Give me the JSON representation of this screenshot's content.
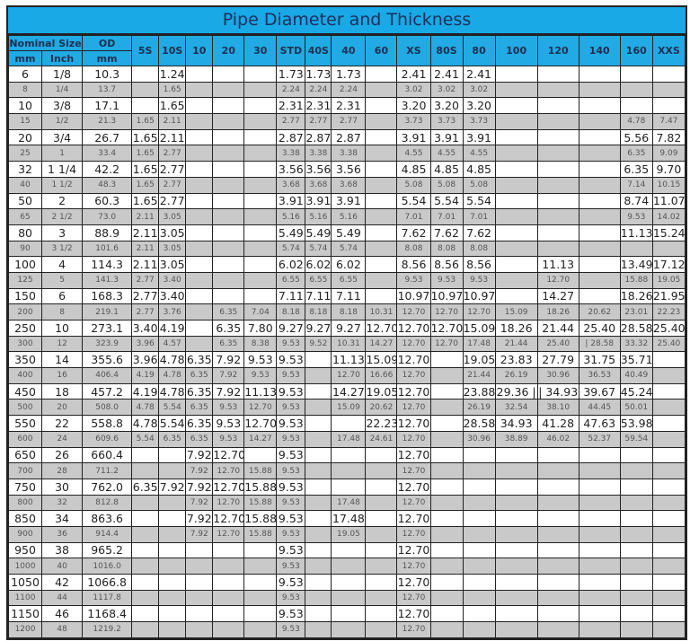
{
  "title": "Pipe Diameter and Thickness",
  "header": {
    "nominal_size": "Nominal Size",
    "od": "OD",
    "sub": [
      "mm",
      "Inch",
      "mm"
    ],
    "schedules": [
      "5S",
      "10S",
      "10",
      "20",
      "30",
      "STD",
      "40S",
      "40",
      "60",
      "XS",
      "80S",
      "80",
      "100",
      "120",
      "140",
      "160",
      "XXS"
    ]
  },
  "colors": {
    "title_bg": "#18a9e6",
    "header_bg": "#21aae4",
    "alt_row": "#c9c9c9"
  },
  "rows": [
    [
      "6",
      "1/8",
      "10.3",
      "",
      "1.24",
      "",
      "",
      "",
      "1.73",
      "1.73",
      "1.73",
      "",
      "2.41",
      "2.41",
      "2.41",
      "",
      "",
      "",
      "",
      ""
    ],
    [
      "8",
      "1/4",
      "13.7",
      "",
      "1.65",
      "",
      "",
      "",
      "2.24",
      "2.24",
      "2.24",
      "",
      "3.02",
      "3.02",
      "3.02",
      "",
      "",
      "",
      "",
      ""
    ],
    [
      "10",
      "3/8",
      "17.1",
      "",
      "1.65",
      "",
      "",
      "",
      "2.31",
      "2.31",
      "2.31",
      "",
      "3.20",
      "3.20",
      "3.20",
      "",
      "",
      "",
      "",
      ""
    ],
    [
      "15",
      "1/2",
      "21.3",
      "1.65",
      "2.11",
      "",
      "",
      "",
      "2.77",
      "2.77",
      "2.77",
      "",
      "3.73",
      "3.73",
      "3.73",
      "",
      "",
      "",
      "4.78",
      "7.47"
    ],
    [
      "20",
      "3/4",
      "26.7",
      "1.65",
      "2.11",
      "",
      "",
      "",
      "2.87",
      "2.87",
      "2.87",
      "",
      "3.91",
      "3.91",
      "3.91",
      "",
      "",
      "",
      "5.56",
      "7.82"
    ],
    [
      "25",
      "1",
      "33.4",
      "1.65",
      "2.77",
      "",
      "",
      "",
      "3.38",
      "3.38",
      "3.38",
      "",
      "4.55",
      "4.55",
      "4.55",
      "",
      "",
      "",
      "6.35",
      "9.09"
    ],
    [
      "32",
      "1 1/4",
      "42.2",
      "1.65",
      "2.77",
      "",
      "",
      "",
      "3.56",
      "3.56",
      "3.56",
      "",
      "4.85",
      "4.85",
      "4.85",
      "",
      "",
      "",
      "6.35",
      "9.70"
    ],
    [
      "40",
      "1 1/2",
      "48.3",
      "1.65",
      "2.77",
      "",
      "",
      "",
      "3.68",
      "3.68",
      "3.68",
      "",
      "5.08",
      "5.08",
      "5.08",
      "",
      "",
      "",
      "7.14",
      "10.15"
    ],
    [
      "50",
      "2",
      "60.3",
      "1.65",
      "2.77",
      "",
      "",
      "",
      "3.91",
      "3.91",
      "3.91",
      "",
      "5.54",
      "5.54",
      "5.54",
      "",
      "",
      "",
      "8.74",
      "11.07"
    ],
    [
      "65",
      "2 1/2",
      "73.0",
      "2.11",
      "3.05",
      "",
      "",
      "",
      "5.16",
      "5.16",
      "5.16",
      "",
      "7.01",
      "7.01",
      "7.01",
      "",
      "",
      "",
      "9.53",
      "14.02"
    ],
    [
      "80",
      "3",
      "88.9",
      "2.11",
      "3.05",
      "",
      "",
      "",
      "5.49",
      "5.49",
      "5.49",
      "",
      "7.62",
      "7.62",
      "7.62",
      "",
      "",
      "",
      "11.13",
      "15.24"
    ],
    [
      "90",
      "3 1/2",
      "101.6",
      "2.11",
      "3.05",
      "",
      "",
      "",
      "5.74",
      "5.74",
      "5.74",
      "",
      "8.08",
      "8.08",
      "8.08",
      "",
      "",
      "",
      "",
      ""
    ],
    [
      "100",
      "4",
      "114.3",
      "2.11",
      "3.05",
      "",
      "",
      "",
      "6.02",
      "6.02",
      "6.02",
      "",
      "8.56",
      "8.56",
      "8.56",
      "",
      "11.13",
      "",
      "13.49",
      "17.12"
    ],
    [
      "125",
      "5",
      "141.3",
      "2.77",
      "3.40",
      "",
      "",
      "",
      "6.55",
      "6.55",
      "6.55",
      "",
      "9.53",
      "9.53",
      "9.53",
      "",
      "12.70",
      "",
      "15.88",
      "19.05"
    ],
    [
      "150",
      "6",
      "168.3",
      "2.77",
      "3.40",
      "",
      "",
      "",
      "7.11",
      "7.11",
      "7.11",
      "",
      "10.97",
      "10.97",
      "10.97",
      "",
      "14.27",
      "",
      "18.26",
      "21.95"
    ],
    [
      "200",
      "8",
      "219.1",
      "2.77",
      "3.76",
      "",
      "6.35",
      "7.04",
      "8.18",
      "8.18",
      "8.18",
      "10.31",
      "12.70",
      "12.70",
      "12.70",
      "15.09",
      "18.26",
      "20.62",
      "23.01",
      "22.23"
    ],
    [
      "250",
      "10",
      "273.1",
      "3.40",
      "4.19",
      "",
      "6.35",
      "7.80",
      "9.27",
      "9.27",
      "9.27",
      "12.70",
      "12.70",
      "12.70",
      "15.09",
      "18.26",
      "21.44",
      "25.40",
      "28.58",
      "25.40"
    ],
    [
      "300",
      "12",
      "323.9",
      "3.96",
      "4.57",
      "",
      "6.35",
      "8.38",
      "9.53",
      "9.52",
      "10.31",
      "14.27",
      "12.70",
      "12.70",
      "17.48",
      "21.44",
      "25.40",
      "| 28.58",
      "33.32",
      "25.40"
    ],
    [
      "350",
      "14",
      "355.6",
      "3.96",
      "4.78",
      "6.35",
      "7.92",
      "9.53",
      "9.53",
      "",
      "11.13",
      "15.09",
      "12.70",
      "",
      "19.05",
      "23.83",
      "27.79",
      "31.75",
      "35.71",
      ""
    ],
    [
      "400",
      "16",
      "406.4",
      "4.19",
      "4.78",
      "6.35",
      "7.92",
      "9.53",
      "9.53",
      "",
      "12.70",
      "16.66",
      "12.70",
      "",
      "21.44",
      "26.19",
      "30.96",
      "36.53",
      "40.49",
      ""
    ],
    [
      "450",
      "18",
      "457.2",
      "4.19",
      "4.78",
      "6.35",
      "7.92",
      "11.13",
      "9.53",
      "",
      "14.27",
      "19.05",
      "12.70",
      "",
      "23.88",
      "29.36 |",
      "| 34.93",
      "39.67",
      "45.24",
      ""
    ],
    [
      "500",
      "20",
      "508.0",
      "4.78",
      "5.54",
      "6.35",
      "9.53",
      "12.70",
      "9.53",
      "",
      "15.09",
      "20.62",
      "12.70",
      "",
      "26.19",
      "32.54",
      "38.10",
      "44.45",
      "50.01",
      ""
    ],
    [
      "550",
      "22",
      "558.8",
      "4.78",
      "5.54",
      "6.35",
      "9.53",
      "12.70",
      "9.53",
      "",
      "",
      "22.23",
      "12.70",
      "",
      "28.58",
      "34.93",
      "41.28",
      "47.63",
      "53.98",
      ""
    ],
    [
      "600",
      "24",
      "609.6",
      "5.54",
      "6.35",
      "6.35",
      "9.53",
      "14.27",
      "9.53",
      "",
      "17.48",
      "24.61",
      "12.70",
      "",
      "30.96",
      "38.89",
      "46.02",
      "52.37",
      "59.54",
      ""
    ],
    [
      "650",
      "26",
      "660.4",
      "",
      "",
      "7.92",
      "12.70",
      "",
      "9.53",
      "",
      "",
      "",
      "12.70",
      "",
      "",
      "",
      "",
      "",
      "",
      ""
    ],
    [
      "700",
      "28",
      "711.2",
      "",
      "",
      "7.92",
      "12.70",
      "15.88",
      "9.53",
      "",
      "",
      "",
      "12.70",
      "",
      "",
      "",
      "",
      "",
      "",
      ""
    ],
    [
      "750",
      "30",
      "762.0",
      "6.35",
      "7.92",
      "7.92",
      "12.70",
      "15.88",
      "9.53",
      "",
      "",
      "",
      "12.70",
      "",
      "",
      "",
      "",
      "",
      "",
      ""
    ],
    [
      "800",
      "32",
      "812.8",
      "",
      "",
      "7.92",
      "12.70",
      "15.88",
      "9.53",
      "",
      "17.48",
      "",
      "12.70",
      "",
      "",
      "",
      "",
      "",
      "",
      ""
    ],
    [
      "850",
      "34",
      "863.6",
      "",
      "",
      "7.92",
      "12.70",
      "15.88",
      "9.53",
      "",
      "17.48",
      "",
      "12.70",
      "",
      "",
      "",
      "",
      "",
      "",
      ""
    ],
    [
      "900",
      "36",
      "914.4",
      "",
      "",
      "7.92",
      "12.70",
      "15.88",
      "9.53",
      "",
      "19.05",
      "",
      "12.70",
      "",
      "",
      "",
      "",
      "",
      "",
      ""
    ],
    [
      "950",
      "38",
      "965.2",
      "",
      "",
      "",
      "",
      "",
      "9.53",
      "",
      "",
      "",
      "12.70",
      "",
      "",
      "",
      "",
      "",
      "",
      ""
    ],
    [
      "1000",
      "40",
      "1016.0",
      "",
      "",
      "",
      "",
      "",
      "9.53",
      "",
      "",
      "",
      "12.70",
      "",
      "",
      "",
      "",
      "",
      "",
      ""
    ],
    [
      "1050",
      "42",
      "1066.8",
      "",
      "",
      "",
      "",
      "",
      "9.53",
      "",
      "",
      "",
      "12.70",
      "",
      "",
      "",
      "",
      "",
      "",
      ""
    ],
    [
      "1100",
      "44",
      "1117.8",
      "",
      "",
      "",
      "",
      "",
      "9.53",
      "",
      "",
      "",
      "12.70",
      "",
      "",
      "",
      "",
      "",
      "",
      ""
    ],
    [
      "1150",
      "46",
      "1168.4",
      "",
      "",
      "",
      "",
      "",
      "9.53",
      "",
      "",
      "",
      "12.70",
      "",
      "",
      "",
      "",
      "",
      "",
      ""
    ],
    [
      "1200",
      "48",
      "1219.2",
      "",
      "",
      "",
      "",
      "",
      "9.53",
      "",
      "",
      "",
      "12.70",
      "",
      "",
      "",
      "",
      "",
      "",
      ""
    ]
  ]
}
